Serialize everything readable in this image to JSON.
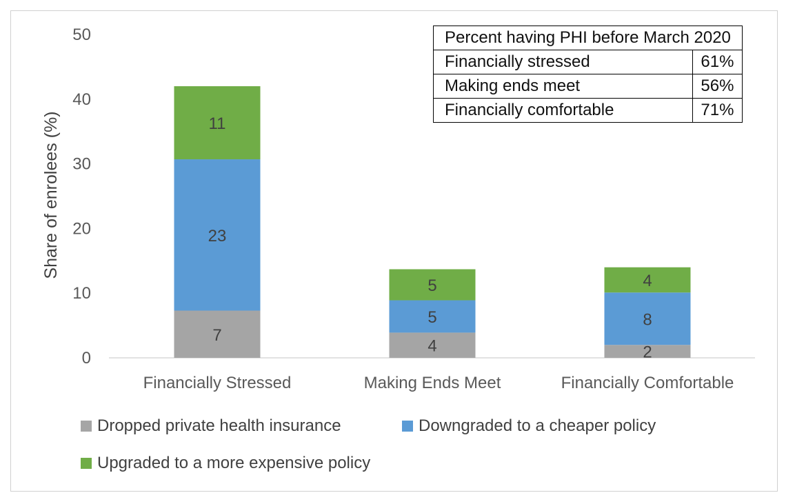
{
  "chart_data": {
    "type": "bar",
    "stacked": true,
    "title": "",
    "xlabel": "",
    "ylabel": "Share of enrolees (%)",
    "ylim": [
      0,
      50
    ],
    "yticks": [
      0,
      10,
      20,
      30,
      40,
      50
    ],
    "grid": false,
    "categories": [
      "Financially Stressed",
      "Making Ends Meet",
      "Financially Comfortable"
    ],
    "series": [
      {
        "name": "Dropped private health insurance",
        "color": "#a5a5a5",
        "values": [
          7.3,
          3.9,
          2.0
        ],
        "labels": [
          "7",
          "4",
          "2"
        ]
      },
      {
        "name": "Downgraded to a cheaper policy",
        "color": "#5b9bd5",
        "values": [
          23.4,
          5.0,
          8.1
        ],
        "labels": [
          "23",
          "5",
          "8"
        ]
      },
      {
        "name": "Upgraded to a more expensive policy",
        "color": "#70ad47",
        "values": [
          11.3,
          4.8,
          3.9
        ],
        "labels": [
          "11",
          "5",
          "4"
        ]
      }
    ],
    "legend_position": "bottom"
  },
  "table": {
    "header": "Percent having PHI before March 2020",
    "rows": [
      {
        "label": "Financially stressed",
        "value": "61%"
      },
      {
        "label": "Making ends meet",
        "value": "56%"
      },
      {
        "label": "Financially comfortable",
        "value": "71%"
      }
    ]
  }
}
